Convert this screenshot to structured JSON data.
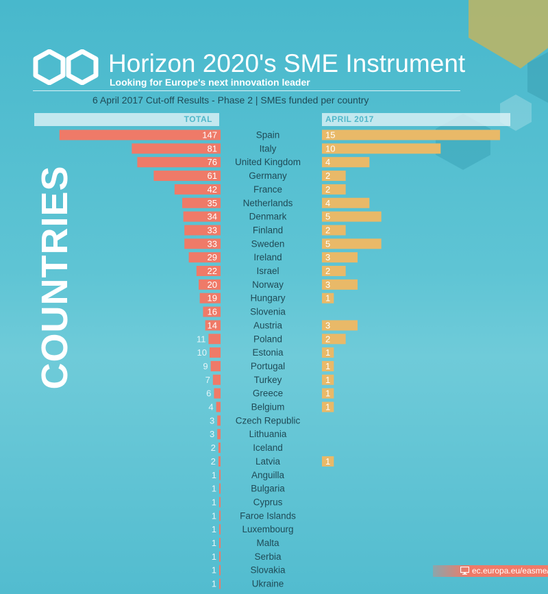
{
  "header": {
    "title": "Horizon 2020's SME Instrument",
    "subtitle": "Looking for Europe's next innovation leader",
    "cutoff": "6 April 2017 Cut-off Results - Phase 2  | SMEs funded per country"
  },
  "side_label": "COUNTRIES",
  "footer": {
    "website": "ec.europa.eu/easme/"
  },
  "colors": {
    "total_bar": "#ef7a68",
    "april_bar": "#e9b968",
    "header_strip": "#e2f4f7",
    "header_text": "#4fb7c9",
    "country_text": "#1f4a56"
  },
  "chart_data": {
    "type": "bar",
    "orientation": "horizontal",
    "categories": [
      "Spain",
      "Italy",
      "United Kingdom",
      "Germany",
      "France",
      "Netherlands",
      "Denmark",
      "Finland",
      "Sweden",
      "Ireland",
      "Israel",
      "Norway",
      "Hungary",
      "Slovenia",
      "Austria",
      "Poland",
      "Estonia",
      "Portugal",
      "Turkey",
      "Greece",
      "Belgium",
      "Czech Republic",
      "Lithuania",
      "Iceland",
      "Latvia",
      "Anguilla",
      "Bulgaria",
      "Cyprus",
      "Faroe Islands",
      "Luxembourg",
      "Malta",
      "Serbia",
      "Slovakia",
      "Ukraine"
    ],
    "series": [
      {
        "name": "TOTAL",
        "values": [
          147,
          81,
          76,
          61,
          42,
          35,
          34,
          33,
          33,
          29,
          22,
          20,
          19,
          16,
          14,
          11,
          10,
          9,
          7,
          6,
          4,
          3,
          3,
          2,
          2,
          1,
          1,
          1,
          1,
          1,
          1,
          1,
          1,
          1
        ]
      },
      {
        "name": "APRIL 2017",
        "values": [
          15,
          10,
          4,
          2,
          2,
          4,
          5,
          2,
          5,
          3,
          2,
          3,
          1,
          null,
          3,
          2,
          1,
          1,
          1,
          1,
          1,
          null,
          null,
          null,
          1,
          null,
          null,
          null,
          null,
          null,
          null,
          null,
          null,
          null
        ]
      }
    ]
  }
}
